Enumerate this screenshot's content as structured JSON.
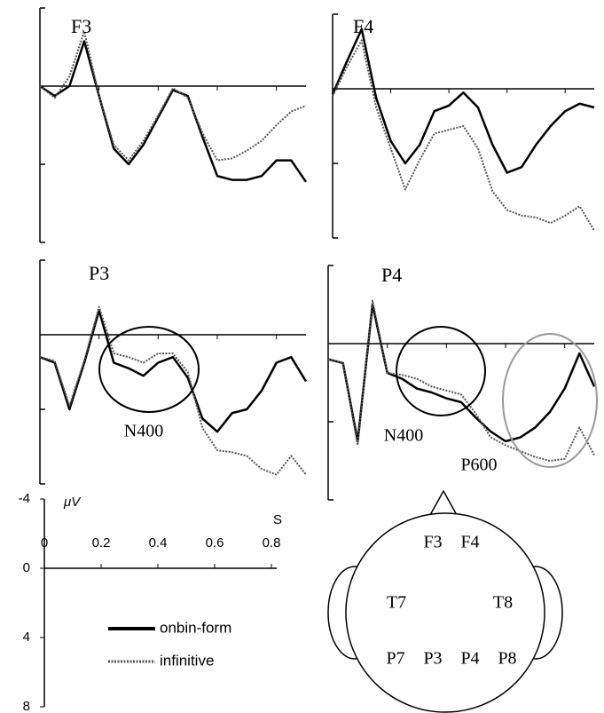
{
  "chart_data": {
    "type": "line",
    "x": [
      0,
      0.05,
      0.1,
      0.15,
      0.2,
      0.25,
      0.3,
      0.35,
      0.4,
      0.45,
      0.5,
      0.55,
      0.6,
      0.65,
      0.7,
      0.75,
      0.8,
      0.85,
      0.9
    ],
    "xlim": [
      0,
      0.9
    ],
    "ylim": [
      -4,
      8
    ],
    "y_inverted": true,
    "xticks": [
      0,
      0.2,
      0.4,
      0.6,
      0.8
    ],
    "yticks": [
      -4,
      0,
      4,
      8
    ],
    "x_label": "S",
    "y_label": "μV",
    "series": [
      {
        "name": "onbin-form",
        "color": "#000000",
        "style": "solid"
      },
      {
        "name": "infinitive",
        "color": "#555555",
        "style": "dotted"
      }
    ],
    "panels": [
      {
        "title": "F3",
        "values": [
          [
            0,
            0.5,
            0,
            -2.3,
            0.5,
            3.2,
            4.0,
            3.0,
            1.6,
            0.2,
            0.5,
            2.6,
            4.6,
            4.8,
            4.8,
            4.6,
            3.8,
            3.8,
            4.9
          ],
          [
            0,
            0.6,
            -0.5,
            -2.8,
            0.5,
            3.0,
            3.8,
            2.8,
            1.5,
            0.1,
            0.6,
            2.4,
            3.8,
            3.7,
            3.3,
            2.8,
            2.0,
            1.3,
            1.0
          ]
        ]
      },
      {
        "title": "F4",
        "values": [
          [
            0.3,
            -1.5,
            -3.2,
            0.5,
            2.8,
            4.0,
            3.0,
            1.2,
            0.9,
            0.2,
            1.0,
            3.0,
            4.5,
            4.2,
            3.0,
            2.0,
            1.2,
            0.8,
            1.0
          ],
          [
            0.4,
            -1.2,
            -2.6,
            1.0,
            3.2,
            5.4,
            3.8,
            2.4,
            2.2,
            2.0,
            3.2,
            5.5,
            6.5,
            6.8,
            6.9,
            7.2,
            6.8,
            6.3,
            7.6
          ]
        ]
      },
      {
        "title": "P3",
        "annotations": [
          "N400"
        ],
        "values": [
          [
            1.2,
            1.5,
            4.0,
            1.5,
            -1.3,
            1.5,
            1.8,
            2.2,
            1.5,
            1.2,
            2.3,
            4.5,
            5.2,
            4.2,
            4.0,
            3.0,
            1.5,
            1.2,
            2.5
          ],
          [
            1.2,
            1.4,
            3.8,
            1.4,
            -1.5,
            1.0,
            1.2,
            1.5,
            1.0,
            1.0,
            2.0,
            5.0,
            6.2,
            6.3,
            6.5,
            7.2,
            7.5,
            6.5,
            7.5
          ]
        ]
      },
      {
        "title": "P4",
        "annotations": [
          "N400",
          "P600"
        ],
        "values": [
          [
            0.8,
            1.0,
            5.0,
            -2.0,
            1.5,
            1.8,
            2.3,
            2.5,
            2.8,
            3.0,
            3.8,
            4.5,
            5.0,
            4.8,
            4.3,
            3.5,
            2.3,
            0.5,
            2.2
          ],
          [
            0.8,
            1.0,
            5.2,
            -2.2,
            1.5,
            1.6,
            1.8,
            2.2,
            2.4,
            2.6,
            3.6,
            4.8,
            5.2,
            5.5,
            5.8,
            6.0,
            5.9,
            4.3,
            5.7
          ]
        ]
      }
    ]
  },
  "head": {
    "electrodes": [
      "F3",
      "F4",
      "T7",
      "T8",
      "P7",
      "P3",
      "P4",
      "P8"
    ]
  }
}
